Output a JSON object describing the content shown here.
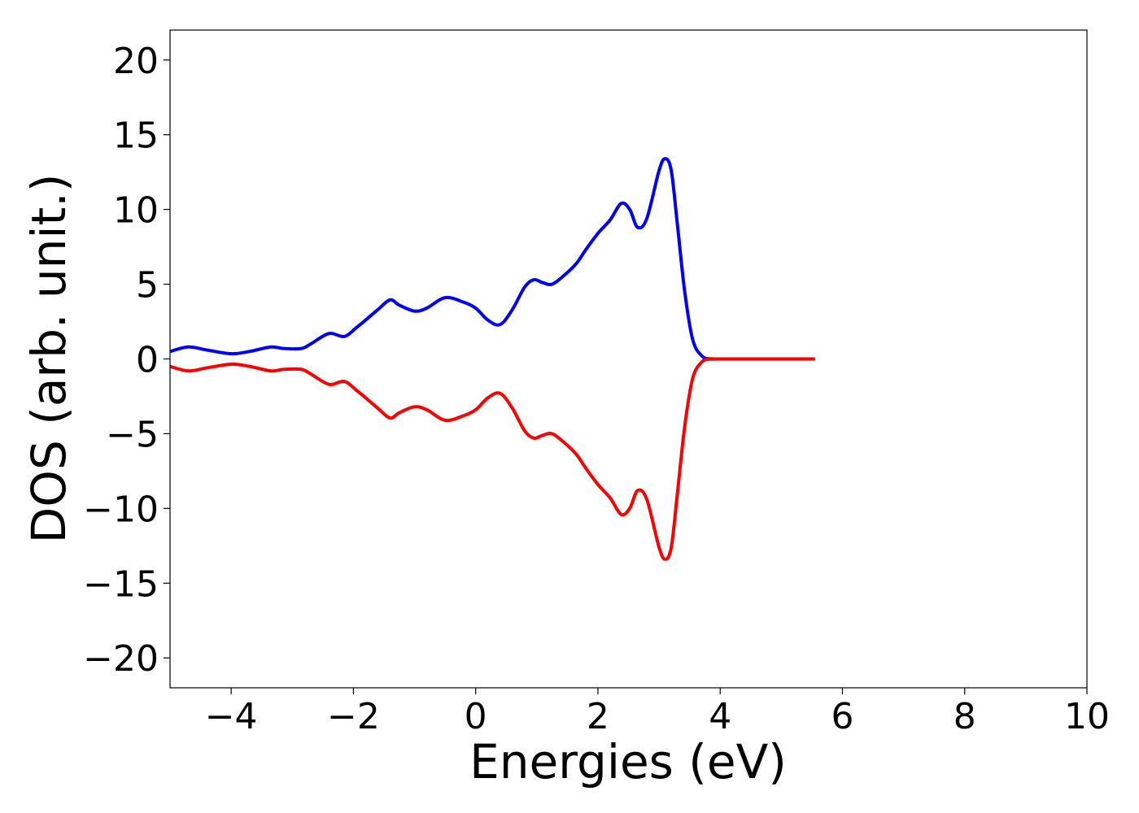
{
  "chart_data": {
    "type": "line",
    "title": "",
    "xlabel": "Energies (eV)",
    "ylabel": "DOS (arb. unit.)",
    "xlim": [
      -5,
      10
    ],
    "ylim": [
      -22,
      22
    ],
    "xticks": [
      -4,
      -2,
      0,
      2,
      4,
      6,
      8,
      10
    ],
    "yticks": [
      -20,
      -15,
      -10,
      -5,
      0,
      5,
      10,
      15,
      20
    ],
    "xtick_labels": [
      "−4",
      "−2",
      "0",
      "2",
      "4",
      "6",
      "8",
      "10"
    ],
    "ytick_labels": [
      "−20",
      "−15",
      "−10",
      "−5",
      "0",
      "5",
      "10",
      "15",
      "20"
    ],
    "grid": false,
    "legend": "none",
    "series": [
      {
        "color": "#0000ff",
        "x": [
          -5.0,
          -4.7,
          -4.4,
          -4.0,
          -3.7,
          -3.35,
          -3.15,
          -2.85,
          -2.7,
          -2.4,
          -2.15,
          -1.95,
          -1.8,
          -1.6,
          -1.4,
          -1.25,
          -1.0,
          -0.8,
          -0.5,
          -0.2,
          0.0,
          0.2,
          0.4,
          0.6,
          0.8,
          0.95,
          1.1,
          1.25,
          1.45,
          1.65,
          1.8,
          2.0,
          2.2,
          2.38,
          2.52,
          2.65,
          2.8,
          3.0,
          3.1,
          3.2,
          3.3,
          3.42,
          3.55,
          3.7,
          3.85,
          4.0,
          5.55
        ],
        "values": [
          0.5,
          0.8,
          0.6,
          0.35,
          0.5,
          0.8,
          0.7,
          0.7,
          1.0,
          1.7,
          1.5,
          2.1,
          2.6,
          3.3,
          3.95,
          3.6,
          3.2,
          3.4,
          4.1,
          3.8,
          3.4,
          2.6,
          2.3,
          3.3,
          4.8,
          5.3,
          5.1,
          5.0,
          5.6,
          6.4,
          7.3,
          8.4,
          9.3,
          10.4,
          10.0,
          8.8,
          9.4,
          12.6,
          13.4,
          12.6,
          9.0,
          4.5,
          1.3,
          0.2,
          0.0,
          0.0,
          0.0
        ]
      },
      {
        "color": "#ff0000",
        "x": [
          -5.0,
          -4.7,
          -4.4,
          -4.0,
          -3.7,
          -3.35,
          -3.15,
          -2.85,
          -2.7,
          -2.4,
          -2.15,
          -1.95,
          -1.8,
          -1.6,
          -1.4,
          -1.25,
          -1.0,
          -0.8,
          -0.5,
          -0.2,
          0.0,
          0.2,
          0.4,
          0.6,
          0.8,
          0.95,
          1.1,
          1.25,
          1.45,
          1.65,
          1.8,
          2.0,
          2.2,
          2.38,
          2.52,
          2.65,
          2.8,
          3.0,
          3.1,
          3.2,
          3.3,
          3.42,
          3.55,
          3.7,
          3.85,
          4.0,
          5.55
        ],
        "values": [
          -0.5,
          -0.8,
          -0.6,
          -0.35,
          -0.5,
          -0.8,
          -0.7,
          -0.7,
          -1.0,
          -1.7,
          -1.5,
          -2.1,
          -2.6,
          -3.3,
          -3.95,
          -3.6,
          -3.2,
          -3.4,
          -4.1,
          -3.8,
          -3.4,
          -2.6,
          -2.3,
          -3.3,
          -4.8,
          -5.3,
          -5.1,
          -5.0,
          -5.6,
          -6.4,
          -7.3,
          -8.4,
          -9.3,
          -10.4,
          -10.0,
          -8.8,
          -9.4,
          -12.6,
          -13.4,
          -12.6,
          -9.0,
          -4.5,
          -1.3,
          -0.2,
          0.0,
          0.0,
          0.0
        ]
      }
    ]
  }
}
